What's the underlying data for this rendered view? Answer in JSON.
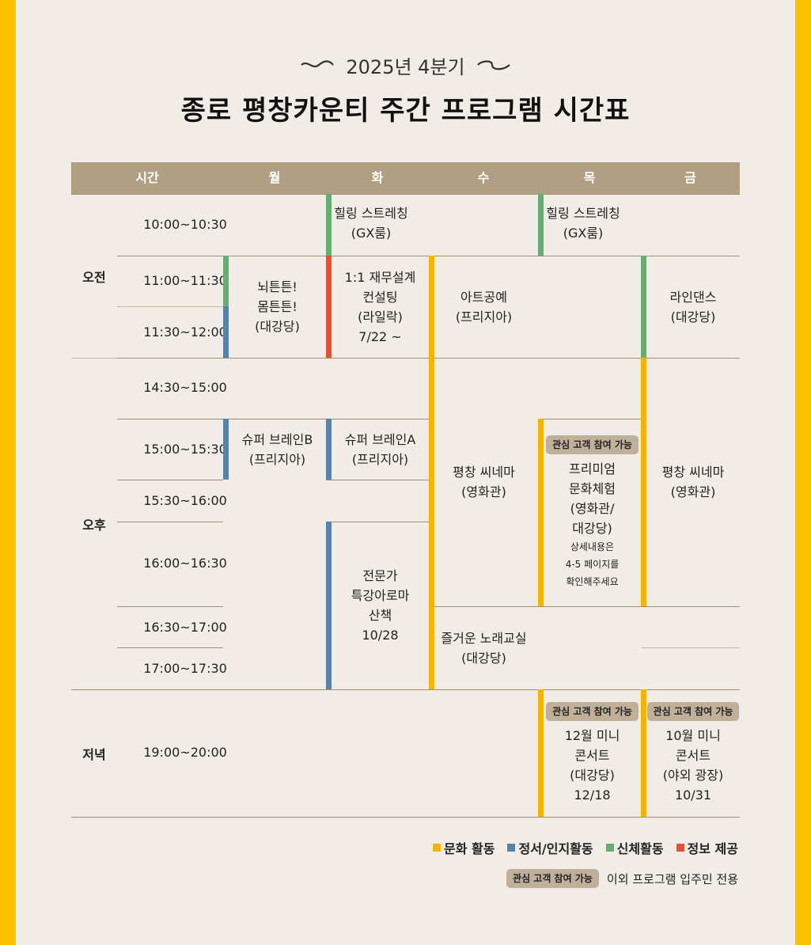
{
  "subtitle": "2025년 4분기",
  "title": "종로 평창카운티 주간 프로그램 시간표",
  "colors": {
    "culture": "#f4b400",
    "emotion": "#5584a8",
    "physical": "#6aaa74",
    "info": "#e0523a",
    "header": "#b09f82",
    "side": "#fdc300"
  },
  "header": {
    "time": "시간",
    "mon": "월",
    "tue": "화",
    "wed": "수",
    "thu": "목",
    "fri": "금"
  },
  "periods": {
    "morning": "오전",
    "afternoon": "오후",
    "evening": "저녁"
  },
  "times": [
    "10:00~10:30",
    "11:00~11:30",
    "11:30~12:00",
    "14:30~15:00",
    "15:00~15:30",
    "15:30~16:00",
    "16:00~16:30",
    "16:30~17:00",
    "17:00~17:30",
    "19:00~20:00"
  ],
  "events": {
    "tue_healing": [
      "힐링 스트레칭",
      "(GX룸)"
    ],
    "thu_healing": [
      "힐링 스트레칭",
      "(GX룸)"
    ],
    "mon_brain": [
      "뇌튼튼!",
      "몸튼튼!",
      "(대강당)"
    ],
    "tue_consult": [
      "1:1 재무설계",
      "컨설팅",
      "(라일락)",
      "7/22 ~"
    ],
    "wed_art": [
      "아트공예",
      "(프리지아)"
    ],
    "fri_line": [
      "라인댄스",
      "(대강당)"
    ],
    "mon_superb": [
      "슈퍼 브레인B",
      "(프리지아)"
    ],
    "tue_supera": [
      "슈퍼 브레인A",
      "(프리지아)"
    ],
    "wed_cinema": [
      "평창 씨네마",
      "(영화관)"
    ],
    "thu_premium": [
      "프리미엄",
      "문화체험",
      "(영화관/",
      "대강당)"
    ],
    "thu_premium_note": [
      "상세내용은",
      "4-5 페이지를",
      "확인해주세요"
    ],
    "fri_cinema": [
      "평창 씨네마",
      "(영화관)"
    ],
    "tue_aroma": [
      "전문가",
      "특강아로마",
      "산책",
      "10/28"
    ],
    "wed_song": [
      "즐거운 노래교실",
      "(대강당)"
    ],
    "thu_concert": [
      "12월 미니",
      "콘서트",
      "(대강당)",
      "12/18"
    ],
    "fri_concert": [
      "10월 미니",
      "콘서트",
      "(야외 광장)",
      "10/31"
    ]
  },
  "badge": "관심 고객 참여 가능",
  "legend": {
    "culture": "문화 활동",
    "emotion": "정서/인지활동",
    "physical": "신체활동",
    "info": "정보 제공"
  },
  "legend_note": "이외 프로그램 입주민 전용"
}
